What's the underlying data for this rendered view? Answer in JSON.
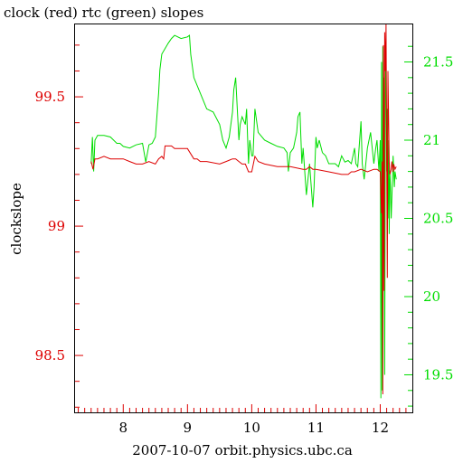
{
  "chart_data": {
    "type": "line",
    "title": "clock (red) rtc (green) slopes",
    "xlabel": "2007-10-07  orbit.physics.ubc.ca",
    "ylabel": "clockslope",
    "xlim": [
      7.25,
      12.5
    ],
    "ylim_left": [
      98.28,
      99.78
    ],
    "ylim_right": [
      19.26,
      21.74
    ],
    "x_ticks": [
      "8",
      "9",
      "10",
      "11",
      "12"
    ],
    "y_ticks_left": [
      "98.5",
      "99",
      "99.5"
    ],
    "y_ticks_right": [
      "19.5",
      "20",
      "20.5",
      "21",
      "21.5"
    ],
    "grid": false,
    "series": [
      {
        "name": "clock",
        "axis": "left",
        "color": "#dd0000",
        "x": [
          7.5,
          7.53,
          7.56,
          7.6,
          7.7,
          7.8,
          8.0,
          8.1,
          8.2,
          8.3,
          8.4,
          8.5,
          8.55,
          8.6,
          8.63,
          8.65,
          8.7,
          8.75,
          8.8,
          9.0,
          9.1,
          9.15,
          9.2,
          9.3,
          9.5,
          9.6,
          9.7,
          9.75,
          9.8,
          9.85,
          9.9,
          9.95,
          10.0,
          10.05,
          10.1,
          10.2,
          10.4,
          10.6,
          10.8,
          10.85,
          10.9,
          10.95,
          11.0,
          11.2,
          11.4,
          11.5,
          11.55,
          11.6,
          11.7,
          11.8,
          11.9,
          11.95,
          12.0,
          12.02,
          12.03,
          12.04,
          12.05,
          12.06,
          12.07,
          12.08,
          12.09,
          12.1,
          12.11,
          12.12,
          12.14,
          12.15,
          12.17,
          12.18,
          12.2,
          12.21,
          12.23,
          12.25
        ],
        "y": [
          99.25,
          99.22,
          99.26,
          99.26,
          99.27,
          99.26,
          99.26,
          99.25,
          99.24,
          99.24,
          99.25,
          99.24,
          99.26,
          99.27,
          99.26,
          99.31,
          99.31,
          99.31,
          99.3,
          99.3,
          99.26,
          99.26,
          99.25,
          99.25,
          99.24,
          99.25,
          99.26,
          99.26,
          99.25,
          99.24,
          99.24,
          99.21,
          99.21,
          99.27,
          99.25,
          99.24,
          99.23,
          99.23,
          99.22,
          99.22,
          99.23,
          99.22,
          99.22,
          99.21,
          99.2,
          99.2,
          99.21,
          99.21,
          99.22,
          99.21,
          99.22,
          99.22,
          99.21,
          99.05,
          99.25,
          98.35,
          99.7,
          98.75,
          99.75,
          99.6,
          99.78,
          99.3,
          98.8,
          99.6,
          99.25,
          99.2,
          99.22,
          99.25,
          99.21,
          99.24,
          99.22,
          99.23
        ]
      },
      {
        "name": "rtc",
        "axis": "right",
        "color": "#00dd00",
        "x": [
          7.5,
          7.52,
          7.54,
          7.56,
          7.6,
          7.7,
          7.8,
          7.9,
          7.95,
          8.0,
          8.1,
          8.2,
          8.3,
          8.35,
          8.4,
          8.45,
          8.5,
          8.55,
          8.57,
          8.6,
          8.7,
          8.75,
          8.8,
          8.9,
          9.0,
          9.03,
          9.05,
          9.1,
          9.2,
          9.3,
          9.4,
          9.5,
          9.55,
          9.6,
          9.65,
          9.7,
          9.72,
          9.75,
          9.8,
          9.82,
          9.85,
          9.9,
          9.92,
          9.95,
          9.97,
          10.0,
          10.02,
          10.05,
          10.1,
          10.2,
          10.3,
          10.4,
          10.5,
          10.55,
          10.57,
          10.6,
          10.65,
          10.7,
          10.72,
          10.75,
          10.78,
          10.8,
          10.85,
          10.9,
          10.95,
          10.97,
          11.0,
          11.02,
          11.05,
          11.1,
          11.15,
          11.2,
          11.3,
          11.35,
          11.4,
          11.45,
          11.5,
          11.55,
          11.6,
          11.62,
          11.65,
          11.7,
          11.72,
          11.75,
          11.8,
          11.85,
          11.9,
          11.93,
          11.95,
          11.98,
          12.0,
          12.01,
          12.02,
          12.03,
          12.04,
          12.05,
          12.06,
          12.07,
          12.08,
          12.09,
          12.1,
          12.11,
          12.12,
          12.13,
          12.14,
          12.15,
          12.16,
          12.17,
          12.19,
          12.2,
          12.22,
          12.23,
          12.25
        ],
        "y": [
          20.85,
          21.02,
          20.8,
          21.0,
          21.03,
          21.03,
          21.02,
          20.98,
          20.98,
          20.96,
          20.95,
          20.97,
          20.98,
          20.86,
          20.97,
          20.98,
          21.02,
          21.3,
          21.45,
          21.55,
          21.62,
          21.65,
          21.67,
          21.65,
          21.66,
          21.67,
          21.55,
          21.4,
          21.3,
          21.2,
          21.18,
          21.1,
          21.0,
          20.95,
          21.02,
          21.18,
          21.32,
          21.4,
          21.0,
          21.1,
          21.15,
          21.1,
          21.2,
          20.85,
          21.0,
          20.9,
          20.9,
          21.2,
          21.05,
          21.0,
          20.98,
          20.96,
          20.95,
          20.92,
          20.8,
          20.92,
          20.95,
          21.05,
          21.15,
          21.18,
          20.85,
          20.95,
          20.65,
          20.85,
          20.57,
          20.7,
          21.02,
          20.95,
          21.0,
          20.92,
          20.9,
          20.85,
          20.85,
          20.83,
          20.9,
          20.86,
          20.87,
          20.85,
          20.95,
          20.85,
          20.83,
          21.12,
          20.85,
          20.75,
          20.95,
          21.05,
          20.85,
          20.95,
          21.0,
          20.8,
          21.0,
          19.35,
          21.5,
          19.4,
          21.6,
          20.3,
          21.4,
          19.5,
          21.3,
          21.6,
          20.8,
          21.2,
          20.5,
          21.0,
          20.4,
          20.8,
          20.7,
          20.5,
          20.75,
          20.9,
          20.7,
          20.8,
          20.75
        ]
      }
    ]
  }
}
